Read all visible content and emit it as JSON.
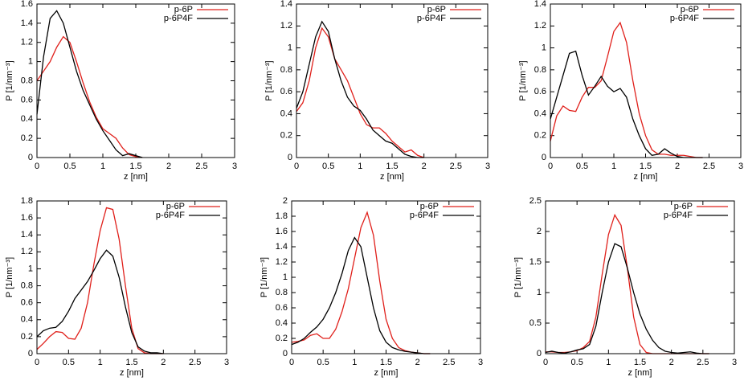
{
  "chart_data": [
    {
      "type": "line",
      "xlabel": "z [nm]",
      "ylabel": "P [1/nm⁻³]",
      "legend": "top right",
      "xlim": [
        0,
        3
      ],
      "xticks": [
        0,
        0.5,
        1,
        1.5,
        2,
        2.5,
        3
      ],
      "ylim": [
        0,
        1.6
      ],
      "yticks": [
        0,
        0.2,
        0.4,
        0.6,
        0.8,
        1,
        1.2,
        1.4,
        1.6
      ],
      "x": [
        0,
        0.1,
        0.2,
        0.3,
        0.4,
        0.5,
        0.6,
        0.7,
        0.8,
        0.9,
        1.0,
        1.1,
        1.2,
        1.3,
        1.4,
        1.5,
        1.6
      ],
      "series": [
        {
          "name": "p-6P",
          "color": "#e0201b",
          "values": [
            0.8,
            0.9,
            1.0,
            1.15,
            1.26,
            1.2,
            1.0,
            0.78,
            0.58,
            0.42,
            0.3,
            0.25,
            0.2,
            0.1,
            0.03,
            0.01,
            0
          ]
        },
        {
          "name": "p-6P4F",
          "color": "#000000",
          "values": [
            0.45,
            1.05,
            1.45,
            1.53,
            1.4,
            1.15,
            0.9,
            0.7,
            0.55,
            0.4,
            0.28,
            0.18,
            0.08,
            0.02,
            0.04,
            0.02,
            0
          ]
        }
      ]
    },
    {
      "type": "line",
      "xlabel": "z [nm]",
      "ylabel": "P [1/nm⁻³]",
      "legend": "top right",
      "xlim": [
        0,
        3
      ],
      "xticks": [
        0,
        0.5,
        1,
        1.5,
        2,
        2.5,
        3
      ],
      "ylim": [
        0,
        1.4
      ],
      "yticks": [
        0,
        0.2,
        0.4,
        0.6,
        0.8,
        1,
        1.2,
        1.4
      ],
      "x": [
        0,
        0.1,
        0.2,
        0.3,
        0.4,
        0.5,
        0.6,
        0.7,
        0.8,
        0.9,
        1.0,
        1.1,
        1.2,
        1.3,
        1.4,
        1.5,
        1.6,
        1.7,
        1.8,
        1.9,
        2.0
      ],
      "series": [
        {
          "name": "p-6P",
          "color": "#e0201b",
          "values": [
            0.42,
            0.5,
            0.7,
            1.0,
            1.18,
            1.1,
            0.9,
            0.8,
            0.7,
            0.55,
            0.4,
            0.3,
            0.27,
            0.27,
            0.22,
            0.15,
            0.1,
            0.05,
            0.07,
            0.02,
            0
          ]
        },
        {
          "name": "p-6P4F",
          "color": "#000000",
          "values": [
            0.45,
            0.6,
            0.85,
            1.1,
            1.24,
            1.15,
            0.9,
            0.7,
            0.55,
            0.47,
            0.43,
            0.35,
            0.25,
            0.2,
            0.15,
            0.13,
            0.08,
            0.03,
            0.01,
            0,
            0
          ]
        }
      ]
    },
    {
      "type": "line",
      "xlabel": "z [nm]",
      "ylabel": "P [1/nm⁻³]",
      "legend": "top right",
      "xlim": [
        0,
        3
      ],
      "xticks": [
        0,
        0.5,
        1,
        1.5,
        2,
        2.5,
        3
      ],
      "ylim": [
        0,
        1.4
      ],
      "yticks": [
        0,
        0.2,
        0.4,
        0.6,
        0.8,
        1,
        1.2,
        1.4
      ],
      "x": [
        0,
        0.1,
        0.2,
        0.3,
        0.4,
        0.5,
        0.6,
        0.7,
        0.8,
        0.9,
        1.0,
        1.1,
        1.2,
        1.3,
        1.4,
        1.5,
        1.6,
        1.7,
        1.8,
        1.9,
        2.0,
        2.1,
        2.2,
        2.3,
        2.4
      ],
      "series": [
        {
          "name": "p-6P",
          "color": "#e0201b",
          "values": [
            0.15,
            0.38,
            0.47,
            0.43,
            0.42,
            0.55,
            0.64,
            0.64,
            0.7,
            0.92,
            1.15,
            1.23,
            1.05,
            0.7,
            0.4,
            0.2,
            0.07,
            0.03,
            0.03,
            0.02,
            0.02,
            0.02,
            0.01,
            0,
            0
          ]
        },
        {
          "name": "p-6P4F",
          "color": "#000000",
          "values": [
            0.35,
            0.55,
            0.75,
            0.95,
            0.97,
            0.75,
            0.57,
            0.65,
            0.74,
            0.65,
            0.6,
            0.63,
            0.55,
            0.35,
            0.2,
            0.08,
            0.02,
            0.03,
            0.08,
            0.04,
            0.01,
            0,
            0,
            0,
            0
          ]
        }
      ]
    },
    {
      "type": "line",
      "xlabel": "z [nm]",
      "ylabel": "P [1/nm⁻³]",
      "legend": "top right",
      "xlim": [
        0,
        3
      ],
      "xticks": [
        0,
        0.5,
        1,
        1.5,
        2,
        2.5,
        3
      ],
      "ylim": [
        0,
        1.8
      ],
      "yticks": [
        0,
        0.2,
        0.4,
        0.6,
        0.8,
        1,
        1.2,
        1.4,
        1.6,
        1.8
      ],
      "x": [
        0,
        0.1,
        0.2,
        0.3,
        0.4,
        0.5,
        0.6,
        0.7,
        0.8,
        0.9,
        1.0,
        1.1,
        1.2,
        1.3,
        1.4,
        1.5,
        1.6,
        1.7,
        1.8,
        1.9,
        2.0
      ],
      "series": [
        {
          "name": "p-6P",
          "color": "#e0201b",
          "values": [
            0.05,
            0.12,
            0.2,
            0.26,
            0.25,
            0.18,
            0.17,
            0.3,
            0.6,
            1.05,
            1.45,
            1.72,
            1.7,
            1.35,
            0.8,
            0.3,
            0.06,
            0.01,
            0,
            0,
            0
          ]
        },
        {
          "name": "p-6P4F",
          "color": "#000000",
          "values": [
            0.2,
            0.27,
            0.3,
            0.31,
            0.38,
            0.5,
            0.65,
            0.75,
            0.85,
            0.98,
            1.12,
            1.22,
            1.15,
            0.9,
            0.55,
            0.25,
            0.08,
            0.03,
            0.01,
            0.01,
            0
          ]
        }
      ]
    },
    {
      "type": "line",
      "xlabel": "z [nm]",
      "ylabel": "P [1/nm⁻³]",
      "legend": "top right",
      "xlim": [
        0,
        3
      ],
      "xticks": [
        0,
        0.5,
        1,
        1.5,
        2,
        2.5,
        3
      ],
      "ylim": [
        0,
        2
      ],
      "yticks": [
        0,
        0.2,
        0.4,
        0.6,
        0.8,
        1,
        1.2,
        1.4,
        1.6,
        1.8,
        2
      ],
      "x": [
        0,
        0.1,
        0.2,
        0.3,
        0.4,
        0.5,
        0.6,
        0.7,
        0.8,
        0.9,
        1.0,
        1.1,
        1.2,
        1.3,
        1.4,
        1.5,
        1.6,
        1.7,
        1.8,
        1.9,
        2.0,
        2.1,
        2.2
      ],
      "series": [
        {
          "name": "p-6P",
          "color": "#e0201b",
          "values": [
            0.15,
            0.16,
            0.18,
            0.24,
            0.26,
            0.2,
            0.2,
            0.32,
            0.55,
            0.85,
            1.25,
            1.65,
            1.85,
            1.55,
            0.95,
            0.45,
            0.2,
            0.08,
            0.04,
            0.02,
            0.01,
            0,
            0
          ]
        },
        {
          "name": "p-6P4F",
          "color": "#000000",
          "values": [
            0.12,
            0.15,
            0.2,
            0.28,
            0.35,
            0.45,
            0.6,
            0.8,
            1.05,
            1.35,
            1.52,
            1.4,
            1.0,
            0.6,
            0.3,
            0.15,
            0.08,
            0.05,
            0.03,
            0.02,
            0.01,
            0,
            0
          ]
        }
      ]
    },
    {
      "type": "line",
      "xlabel": "z [nm]",
      "ylabel": "P [1/nm⁻³]",
      "legend": "top right",
      "xlim": [
        0,
        3
      ],
      "xticks": [
        0,
        0.5,
        1,
        1.5,
        2,
        2.5,
        3
      ],
      "ylim": [
        0,
        2.5
      ],
      "yticks": [
        0,
        0.5,
        1,
        1.5,
        2,
        2.5
      ],
      "x": [
        0,
        0.1,
        0.2,
        0.3,
        0.4,
        0.5,
        0.6,
        0.7,
        0.8,
        0.9,
        1.0,
        1.1,
        1.2,
        1.3,
        1.4,
        1.5,
        1.6,
        1.7,
        1.8,
        1.9,
        2.0,
        2.1,
        2.2,
        2.3,
        2.4,
        2.5,
        2.6
      ],
      "series": [
        {
          "name": "p-6P",
          "color": "#e0201b",
          "values": [
            0.03,
            0.03,
            0.02,
            0.02,
            0.03,
            0.05,
            0.1,
            0.2,
            0.6,
            1.3,
            1.95,
            2.27,
            2.1,
            1.4,
            0.6,
            0.15,
            0.02,
            0,
            0,
            0,
            0,
            0,
            0,
            0,
            0,
            0,
            0
          ]
        },
        {
          "name": "p-6P4F",
          "color": "#000000",
          "values": [
            0.02,
            0.04,
            0.02,
            0.01,
            0.03,
            0.06,
            0.08,
            0.15,
            0.45,
            1.0,
            1.5,
            1.8,
            1.75,
            1.4,
            1.0,
            0.65,
            0.4,
            0.22,
            0.1,
            0.04,
            0.02,
            0.01,
            0.02,
            0.03,
            0.01,
            0,
            0
          ]
        }
      ]
    }
  ]
}
